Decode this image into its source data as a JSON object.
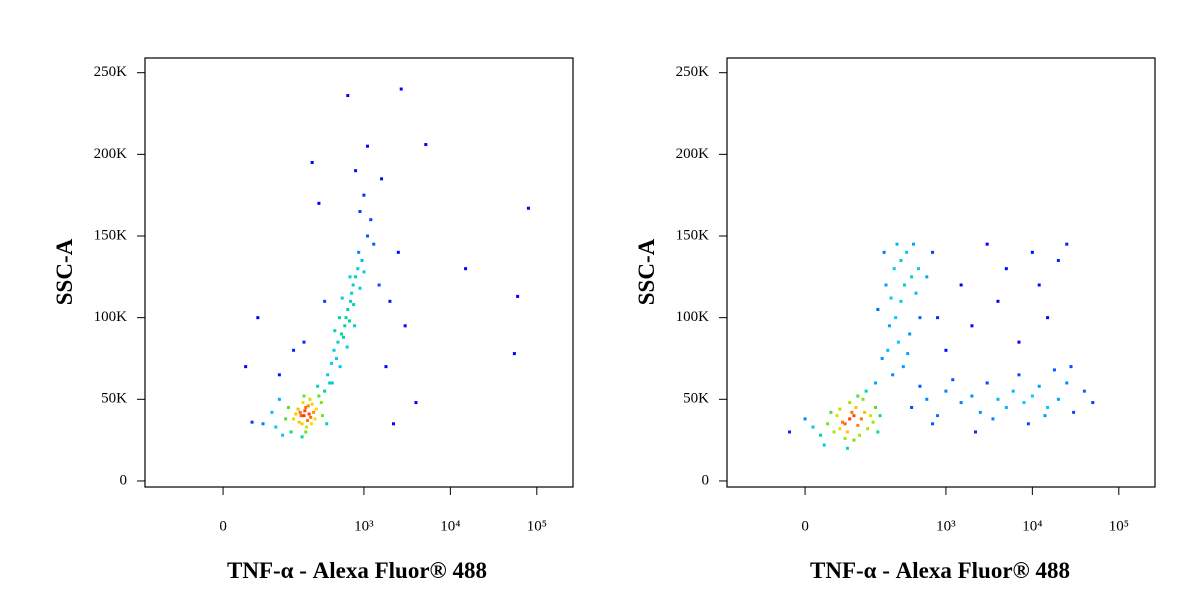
{
  "chart_data": [
    {
      "type": "scatter",
      "xlabel": "TNF-α - Alexa Fluor® 488",
      "ylabel": "SSC-A",
      "xscale": "biexponential",
      "xlim": [
        -185,
        262144
      ],
      "ylim": [
        -3700,
        259000
      ],
      "xticks": [
        0,
        {
          "value": 1000,
          "label": "10³"
        },
        {
          "value": 10000,
          "label": "10⁴"
        },
        {
          "value": 100000,
          "label": "10⁵"
        }
      ],
      "yticks": [
        0,
        {
          "value": 50000,
          "label": "50K"
        },
        {
          "value": 100000,
          "label": "100K"
        },
        {
          "value": 150000,
          "label": "150K"
        },
        {
          "value": 200000,
          "label": "200K"
        },
        {
          "value": 250000,
          "label": "250K"
        }
      ],
      "x": [
        150,
        180,
        200,
        210,
        190,
        230,
        220,
        170,
        250,
        240,
        205,
        195,
        215,
        260,
        185,
        225,
        175,
        235,
        245,
        160,
        280,
        300,
        140,
        130,
        120,
        320,
        270,
        290,
        110,
        350,
        100,
        90,
        330,
        210,
        200,
        190,
        400,
        80,
        60,
        370,
        380,
        420,
        450,
        500,
        480,
        550,
        600,
        620,
        580,
        650,
        700,
        680,
        720,
        750,
        800,
        760,
        850,
        900,
        950,
        530,
        460,
        640,
        870,
        1000,
        1100,
        430,
        560,
        780,
        520,
        690,
        1200,
        1000,
        1300,
        900,
        1500,
        2000,
        800,
        1100,
        250,
        300,
        1600,
        2500,
        3000,
        1800,
        150,
        50,
        30,
        40,
        60000,
        55000,
        80000,
        5200,
        650,
        2700,
        15000,
        4000,
        2200,
        350,
        200,
        100
      ],
      "values": [
        38000,
        42000,
        40000,
        45000,
        35000,
        41000,
        37000,
        44000,
        47000,
        39000,
        43000,
        48000,
        33000,
        42000,
        40000,
        46000,
        36000,
        50000,
        35000,
        41000,
        44000,
        52000,
        30000,
        45000,
        38000,
        48000,
        38000,
        58000,
        28000,
        55000,
        50000,
        33000,
        40000,
        30000,
        52000,
        27000,
        60000,
        42000,
        35000,
        35000,
        65000,
        72000,
        80000,
        85000,
        75000,
        90000,
        95000,
        100000,
        88000,
        105000,
        110000,
        98000,
        115000,
        120000,
        125000,
        108000,
        130000,
        118000,
        135000,
        70000,
        92000,
        82000,
        140000,
        128000,
        150000,
        60000,
        112000,
        95000,
        100000,
        125000,
        160000,
        175000,
        145000,
        165000,
        120000,
        110000,
        190000,
        205000,
        195000,
        170000,
        185000,
        140000,
        95000,
        70000,
        80000,
        100000,
        70000,
        36000,
        113000,
        78000,
        167000,
        206000,
        236000,
        240000,
        130000,
        48000,
        35000,
        110000,
        85000,
        65000
      ]
    },
    {
      "type": "scatter",
      "xlabel": "TNF-α - Alexa Fluor® 488",
      "ylabel": "SSC-A",
      "xscale": "biexponential",
      "xlim": [
        -185,
        262144
      ],
      "ylim": [
        -3700,
        259000
      ],
      "xticks": [
        0,
        {
          "value": 1000,
          "label": "10³"
        },
        {
          "value": 10000,
          "label": "10⁴"
        },
        {
          "value": 100000,
          "label": "10⁵"
        }
      ],
      "yticks": [
        0,
        {
          "value": 50000,
          "label": "50K"
        },
        {
          "value": 100000,
          "label": "100K"
        },
        {
          "value": 150000,
          "label": "150K"
        },
        {
          "value": 200000,
          "label": "200K"
        },
        {
          "value": 250000,
          "label": "250K"
        }
      ],
      "x": [
        60,
        70,
        50,
        80,
        65,
        75,
        55,
        90,
        45,
        85,
        100,
        40,
        95,
        110,
        30,
        120,
        70,
        60,
        50,
        130,
        20,
        35,
        140,
        105,
        80,
        150,
        10,
        0,
        -20,
        160,
        115,
        25,
        90,
        170,
        65,
        200,
        250,
        300,
        220,
        350,
        280,
        180,
        400,
        260,
        320,
        190,
        450,
        240,
        380,
        300,
        160,
        500,
        210,
        420,
        330,
        150,
        270,
        230,
        360,
        480,
        400,
        600,
        800,
        1000,
        1500,
        2000,
        2500,
        3000,
        4000,
        5000,
        6000,
        8000,
        10000,
        12000,
        15000,
        20000,
        25000,
        30000,
        40000,
        700,
        1200,
        3500,
        7000,
        18000,
        9000,
        500,
        2200,
        14000,
        28000,
        50000,
        700,
        1500,
        3000,
        5000,
        10000,
        20000,
        25000,
        800,
        2000,
        4000,
        7000,
        15000,
        12000,
        1000,
        600
      ],
      "values": [
        35000,
        38000,
        32000,
        40000,
        30000,
        42000,
        36000,
        34000,
        40000,
        45000,
        38000,
        30000,
        28000,
        42000,
        35000,
        32000,
        48000,
        26000,
        44000,
        40000,
        28000,
        42000,
        36000,
        50000,
        25000,
        45000,
        33000,
        38000,
        30000,
        30000,
        55000,
        22000,
        52000,
        40000,
        20000,
        120000,
        130000,
        110000,
        95000,
        140000,
        85000,
        75000,
        125000,
        100000,
        70000,
        140000,
        115000,
        65000,
        90000,
        135000,
        105000,
        100000,
        80000,
        145000,
        120000,
        60000,
        145000,
        112000,
        78000,
        130000,
        45000,
        50000,
        40000,
        55000,
        48000,
        52000,
        42000,
        60000,
        50000,
        45000,
        55000,
        48000,
        52000,
        58000,
        45000,
        50000,
        60000,
        42000,
        55000,
        35000,
        62000,
        38000,
        65000,
        68000,
        35000,
        58000,
        30000,
        40000,
        70000,
        48000,
        140000,
        120000,
        145000,
        130000,
        140000,
        135000,
        145000,
        100000,
        95000,
        110000,
        85000,
        100000,
        120000,
        80000,
        125000
      ]
    }
  ]
}
